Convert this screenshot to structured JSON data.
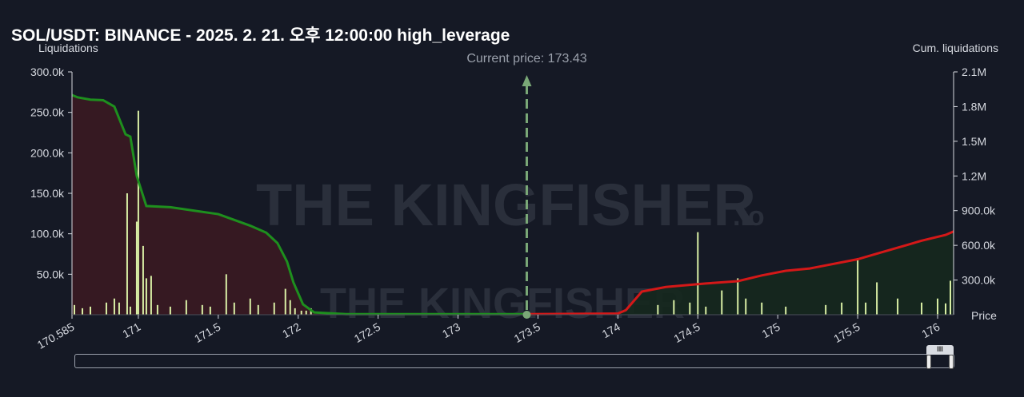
{
  "title": "SOL/USDT: BINANCE - 2025. 2. 21. 오후 12:00:00 high_leverage",
  "left_axis_label": "Liquidations",
  "right_axis_label": "Cum. liquidations",
  "price_axis_label": "Price",
  "current_price_label": "Current price: 173.43",
  "watermark_text": "THE KINGFISHER",
  "watermark_suffix": ".io",
  "scrollbar_grip": "III",
  "colors": {
    "background": "#151925",
    "long_cum_line": "#1e8f1e",
    "short_cum_line": "#d41818",
    "long_fill": "#3a1a22",
    "short_fill": "#15281e",
    "bars": "#d9efa5",
    "small_bars": "#8a8fd0",
    "current_price_line": "#7aa877"
  },
  "chart_data": {
    "type": "bar+line",
    "x_range": [
      170.585,
      176.1
    ],
    "x_ticks": [
      "170.585",
      "171",
      "171.5",
      "172",
      "172.5",
      "173",
      "173.5",
      "174",
      "174.5",
      "175",
      "175.5",
      "176"
    ],
    "x_tick_values": [
      170.585,
      171,
      171.5,
      172,
      172.5,
      173,
      173.5,
      174,
      174.5,
      175,
      175.5,
      176
    ],
    "y_left": {
      "range": [
        0,
        300000
      ],
      "ticks": [
        50000,
        100000,
        150000,
        200000,
        250000,
        300000
      ],
      "tick_labels": [
        "50.0k",
        "100.0k",
        "150.0k",
        "200.0k",
        "250.0k",
        "300.0k"
      ]
    },
    "y_right": {
      "range": [
        0,
        2100000
      ],
      "ticks": [
        300000,
        600000,
        900000,
        1200000,
        1500000,
        1800000,
        2100000
      ],
      "tick_labels": [
        "300.0k",
        "600.0k",
        "900.0k",
        "1.2M",
        "1.5M",
        "1.8M",
        "2.1M"
      ]
    },
    "current_price": 173.43,
    "liquidation_bars": [
      {
        "x": 170.6,
        "y": 12000
      },
      {
        "x": 170.65,
        "y": 8000
      },
      {
        "x": 170.7,
        "y": 10000
      },
      {
        "x": 170.8,
        "y": 15000
      },
      {
        "x": 170.85,
        "y": 20000
      },
      {
        "x": 170.88,
        "y": 15000
      },
      {
        "x": 170.93,
        "y": 150000
      },
      {
        "x": 170.95,
        "y": 10000
      },
      {
        "x": 170.99,
        "y": 115000
      },
      {
        "x": 171.03,
        "y": 85000
      },
      {
        "x": 171.05,
        "y": 45000
      },
      {
        "x": 171.08,
        "y": 48000
      },
      {
        "x": 171.0,
        "y": 252000
      },
      {
        "x": 171.12,
        "y": 12000
      },
      {
        "x": 171.2,
        "y": 10000
      },
      {
        "x": 171.3,
        "y": 18000
      },
      {
        "x": 171.4,
        "y": 12000
      },
      {
        "x": 171.45,
        "y": 10000
      },
      {
        "x": 171.55,
        "y": 50000
      },
      {
        "x": 171.6,
        "y": 15000
      },
      {
        "x": 171.7,
        "y": 20000
      },
      {
        "x": 171.75,
        "y": 12000
      },
      {
        "x": 171.85,
        "y": 15000
      },
      {
        "x": 171.92,
        "y": 32000
      },
      {
        "x": 171.95,
        "y": 18000
      },
      {
        "x": 171.98,
        "y": 8000
      },
      {
        "x": 172.02,
        "y": 5000
      },
      {
        "x": 172.05,
        "y": 5000
      },
      {
        "x": 172.08,
        "y": 8000
      },
      {
        "x": 174.25,
        "y": 12000
      },
      {
        "x": 174.35,
        "y": 18000
      },
      {
        "x": 174.45,
        "y": 15000
      },
      {
        "x": 174.5,
        "y": 102000
      },
      {
        "x": 174.55,
        "y": 10000
      },
      {
        "x": 174.65,
        "y": 30000
      },
      {
        "x": 174.75,
        "y": 45000
      },
      {
        "x": 174.8,
        "y": 20000
      },
      {
        "x": 174.9,
        "y": 15000
      },
      {
        "x": 175.05,
        "y": 10000
      },
      {
        "x": 175.3,
        "y": 12000
      },
      {
        "x": 175.4,
        "y": 15000
      },
      {
        "x": 175.5,
        "y": 70000
      },
      {
        "x": 175.55,
        "y": 15000
      },
      {
        "x": 175.62,
        "y": 40000
      },
      {
        "x": 175.75,
        "y": 20000
      },
      {
        "x": 175.9,
        "y": 15000
      },
      {
        "x": 176.0,
        "y": 20000
      },
      {
        "x": 176.05,
        "y": 14000
      },
      {
        "x": 176.08,
        "y": 42000
      }
    ],
    "long_cumulative": [
      {
        "x": 170.585,
        "y": 1900000
      },
      {
        "x": 170.62,
        "y": 1880000
      },
      {
        "x": 170.7,
        "y": 1860000
      },
      {
        "x": 170.78,
        "y": 1855000
      },
      {
        "x": 170.85,
        "y": 1800000
      },
      {
        "x": 170.92,
        "y": 1560000
      },
      {
        "x": 170.95,
        "y": 1540000
      },
      {
        "x": 170.99,
        "y": 1200000
      },
      {
        "x": 171.05,
        "y": 940000
      },
      {
        "x": 171.2,
        "y": 930000
      },
      {
        "x": 171.35,
        "y": 900000
      },
      {
        "x": 171.5,
        "y": 870000
      },
      {
        "x": 171.6,
        "y": 820000
      },
      {
        "x": 171.7,
        "y": 770000
      },
      {
        "x": 171.8,
        "y": 710000
      },
      {
        "x": 171.87,
        "y": 620000
      },
      {
        "x": 171.93,
        "y": 460000
      },
      {
        "x": 171.97,
        "y": 280000
      },
      {
        "x": 172.03,
        "y": 90000
      },
      {
        "x": 172.1,
        "y": 20000
      },
      {
        "x": 172.3,
        "y": 5000
      },
      {
        "x": 173.43,
        "y": 5000
      }
    ],
    "short_cumulative": [
      {
        "x": 173.43,
        "y": 5000
      },
      {
        "x": 174.0,
        "y": 10000
      },
      {
        "x": 174.05,
        "y": 40000
      },
      {
        "x": 174.1,
        "y": 120000
      },
      {
        "x": 174.15,
        "y": 200000
      },
      {
        "x": 174.3,
        "y": 240000
      },
      {
        "x": 174.55,
        "y": 270000
      },
      {
        "x": 174.75,
        "y": 290000
      },
      {
        "x": 174.9,
        "y": 340000
      },
      {
        "x": 175.05,
        "y": 380000
      },
      {
        "x": 175.2,
        "y": 400000
      },
      {
        "x": 175.5,
        "y": 480000
      },
      {
        "x": 175.65,
        "y": 540000
      },
      {
        "x": 175.8,
        "y": 600000
      },
      {
        "x": 175.9,
        "y": 640000
      },
      {
        "x": 176.05,
        "y": 690000
      },
      {
        "x": 176.1,
        "y": 720000
      }
    ]
  }
}
